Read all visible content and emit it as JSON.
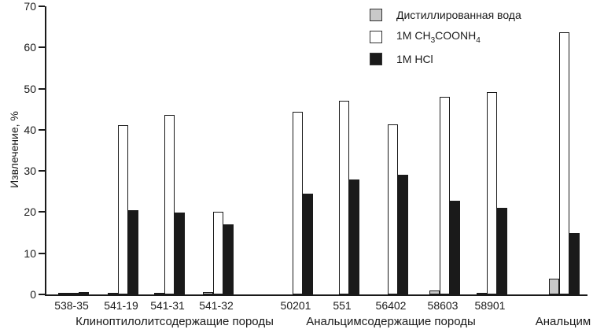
{
  "chart_data": {
    "type": "bar",
    "title": "",
    "ylabel": "Извлечение, %",
    "ylim": [
      0,
      70
    ],
    "yticks": [
      0,
      10,
      20,
      30,
      40,
      50,
      60,
      70
    ],
    "grid": false,
    "legend_position": "top-right",
    "categories": [
      "538-35",
      "541-19",
      "541-31",
      "541-32",
      "50201",
      "551",
      "56402",
      "58603",
      "58901",
      ""
    ],
    "sections": [
      {
        "label": "Клиноптилолитсодержащие породы",
        "group_indices": [
          0,
          1,
          2,
          3
        ]
      },
      {
        "label": "Анальцимсодержащие породы",
        "group_indices": [
          4,
          5,
          6,
          7,
          8
        ]
      },
      {
        "label": "Анальцим",
        "group_indices": [
          9
        ]
      }
    ],
    "series": [
      {
        "name": "Дистиллированная вода",
        "name_parts": [
          {
            "text": "Дистиллированная вода",
            "sub": false
          }
        ],
        "color": "#c9c9c9",
        "values": [
          0.2,
          0.3,
          0.2,
          0.5,
          0,
          0,
          0,
          1.0,
          0.3,
          3.8
        ]
      },
      {
        "name": "1M CH3COONH4",
        "name_parts": [
          {
            "text": "1M CH",
            "sub": false
          },
          {
            "text": "3",
            "sub": true
          },
          {
            "text": "COONH",
            "sub": false
          },
          {
            "text": "4",
            "sub": true
          }
        ],
        "color": "#ffffff",
        "values": [
          0.3,
          41.2,
          43.7,
          20.1,
          44.3,
          47.0,
          41.4,
          48.0,
          49.2,
          63.7
        ]
      },
      {
        "name": "1M HCl",
        "name_parts": [
          {
            "text": "1M HCl",
            "sub": false
          }
        ],
        "color": "#1a1a1a",
        "values": [
          0.5,
          20.4,
          19.8,
          17.1,
          24.5,
          28.0,
          29.0,
          22.7,
          21.0,
          15.0
        ]
      }
    ]
  }
}
